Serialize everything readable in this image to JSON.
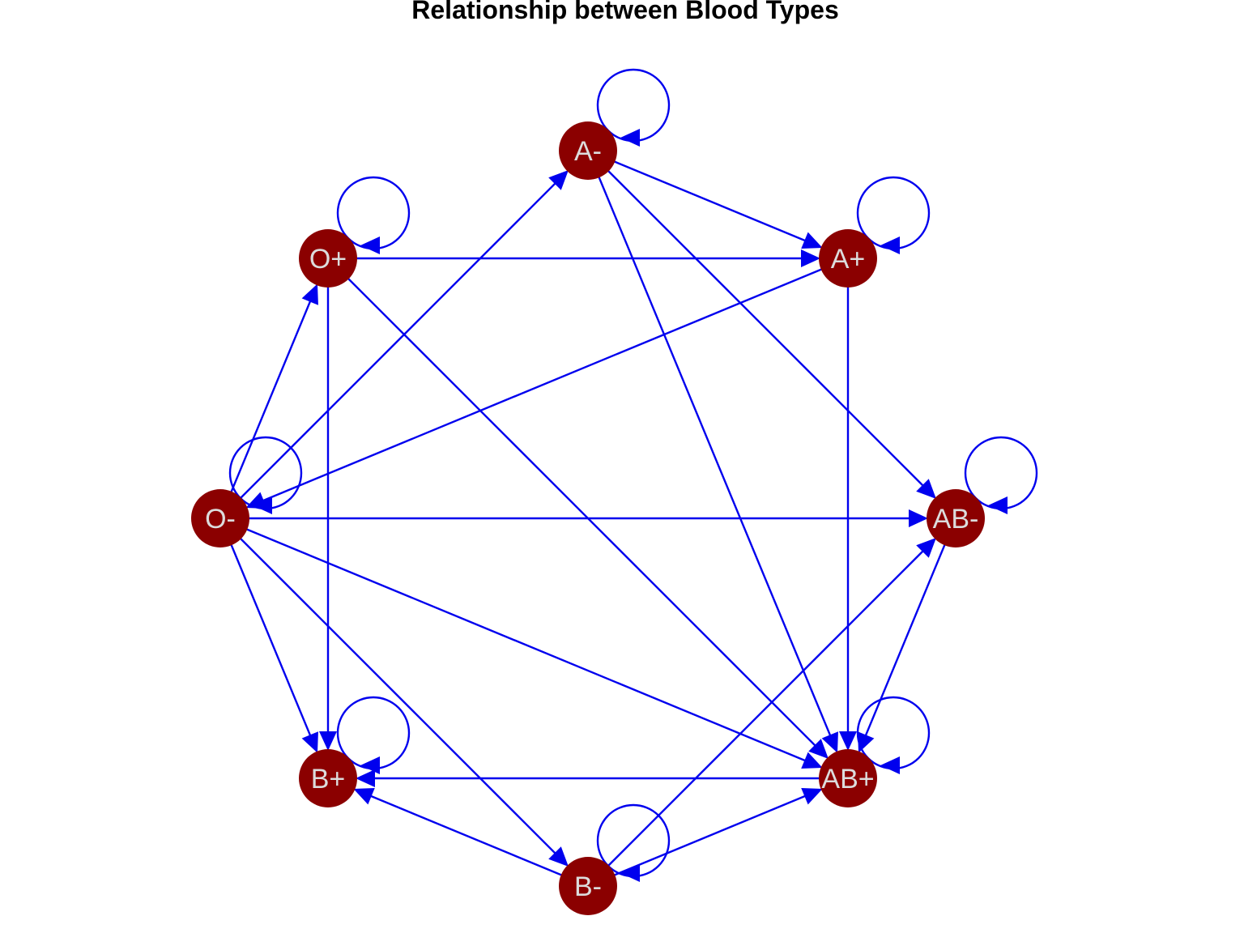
{
  "title": "Relationship between Blood Types",
  "colors": {
    "node": "#8b0000",
    "edge": "#0000ee",
    "label": "#dcdcdc",
    "background": "#ffffff"
  },
  "nodes": [
    {
      "id": "A-",
      "label": "A-"
    },
    {
      "id": "A+",
      "label": "A+"
    },
    {
      "id": "AB-",
      "label": "AB-"
    },
    {
      "id": "AB+",
      "label": "AB+"
    },
    {
      "id": "B-",
      "label": "B-"
    },
    {
      "id": "B+",
      "label": "B+"
    },
    {
      "id": "O-",
      "label": "O-"
    },
    {
      "id": "O+",
      "label": "O+"
    }
  ],
  "edges": [
    {
      "from": "A-",
      "to": "A-"
    },
    {
      "from": "A-",
      "to": "A+"
    },
    {
      "from": "A-",
      "to": "AB-"
    },
    {
      "from": "A-",
      "to": "AB+"
    },
    {
      "from": "A+",
      "to": "A+"
    },
    {
      "from": "A+",
      "to": "AB+"
    },
    {
      "from": "A+",
      "to": "O-"
    },
    {
      "from": "AB-",
      "to": "AB-"
    },
    {
      "from": "AB-",
      "to": "AB+"
    },
    {
      "from": "AB+",
      "to": "AB+"
    },
    {
      "from": "AB+",
      "to": "B+"
    },
    {
      "from": "B-",
      "to": "B-"
    },
    {
      "from": "B-",
      "to": "B+"
    },
    {
      "from": "B-",
      "to": "AB-"
    },
    {
      "from": "B-",
      "to": "AB+"
    },
    {
      "from": "B+",
      "to": "B+"
    },
    {
      "from": "O-",
      "to": "O-"
    },
    {
      "from": "O-",
      "to": "O+"
    },
    {
      "from": "O-",
      "to": "A-"
    },
    {
      "from": "O-",
      "to": "AB-"
    },
    {
      "from": "O-",
      "to": "AB+"
    },
    {
      "from": "O-",
      "to": "B+"
    },
    {
      "from": "O-",
      "to": "B-"
    },
    {
      "from": "O+",
      "to": "O+"
    },
    {
      "from": "O+",
      "to": "A+"
    },
    {
      "from": "O+",
      "to": "B+"
    },
    {
      "from": "O+",
      "to": "AB+"
    }
  ]
}
